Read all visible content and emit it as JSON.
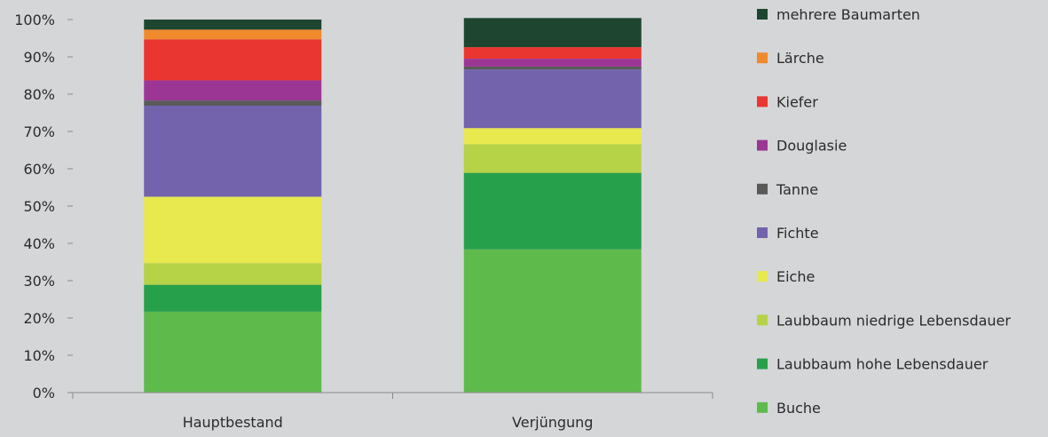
{
  "chart_data": {
    "type": "bar",
    "stacked": true,
    "title": "",
    "xlabel": "",
    "ylabel": "",
    "ylim": [
      0,
      100
    ],
    "y_ticks": [
      "0%",
      "10%",
      "20%",
      "30%",
      "40%",
      "50%",
      "60%",
      "70%",
      "80%",
      "90%",
      "100%"
    ],
    "grid": false,
    "legend_position": "right",
    "categories": [
      "Hauptbestand",
      "Verjüngung"
    ],
    "series": [
      {
        "name": "Buche",
        "color": "#5fba4c",
        "values": [
          21.7,
          38.4
        ]
      },
      {
        "name": "Laubbaum hohe Lebensdauer",
        "color": "#27a04b",
        "values": [
          7.2,
          20.5
        ]
      },
      {
        "name": "Laubbaum niedrige Lebensdauer",
        "color": "#b6d246",
        "values": [
          5.8,
          7.7
        ]
      },
      {
        "name": "Eiche",
        "color": "#e8e84f",
        "values": [
          17.8,
          4.3
        ]
      },
      {
        "name": "Fichte",
        "color": "#7363ad",
        "values": [
          24.4,
          15.7
        ]
      },
      {
        "name": "Tanne",
        "color": "#5a5a5a",
        "values": [
          1.4,
          0.8
        ]
      },
      {
        "name": "Douglasie",
        "color": "#9c3695",
        "values": [
          5.4,
          2.1
        ]
      },
      {
        "name": "Kiefer",
        "color": "#ea3630",
        "values": [
          11.0,
          3.1
        ]
      },
      {
        "name": "Lärche",
        "color": "#f08a2c",
        "values": [
          2.6,
          0.0
        ]
      },
      {
        "name": "mehrere Baumarten",
        "color": "#1e4530",
        "values": [
          2.7,
          7.8
        ]
      }
    ]
  }
}
